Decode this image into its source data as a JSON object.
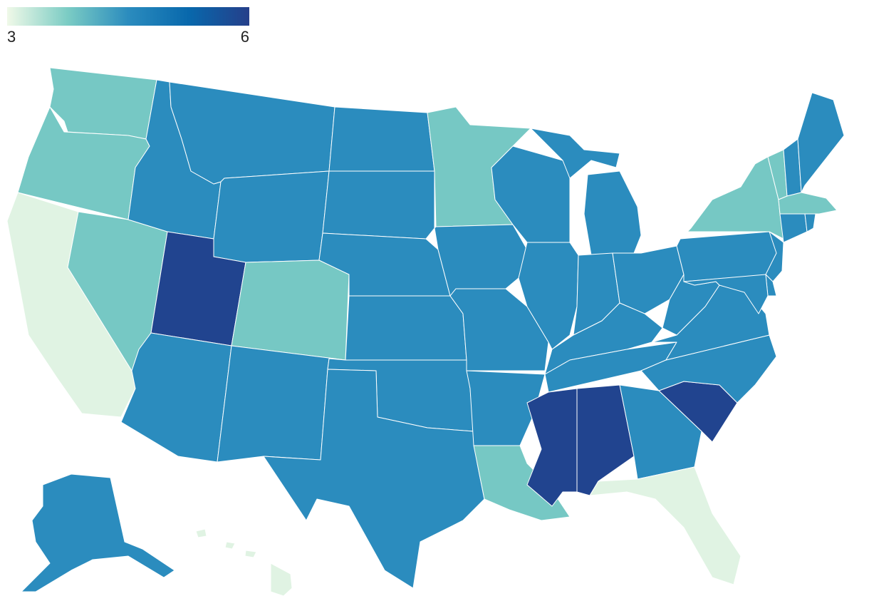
{
  "chart_data": {
    "type": "choropleth",
    "colorbar": {
      "lim": [
        3,
        6
      ],
      "ticks": [
        3,
        6
      ],
      "colors": [
        "#f0f9e8",
        "#7bccc4",
        "#2b8cbe",
        "#0868ac",
        "#253f8a"
      ]
    },
    "values": [
      3.8,
      3.8,
      3.1,
      3.8,
      4.5,
      4.5,
      4.5,
      5.9,
      4.5,
      3.8,
      4.5,
      4.5,
      4.5,
      4.5,
      4.5,
      4.5,
      4.5,
      3.8,
      4.5,
      4.5,
      4.5,
      3.8,
      4.5,
      4.5,
      4.5,
      4.5,
      4.5,
      4.5,
      4.5,
      5.9,
      5.9,
      4.5,
      3.1,
      5.9,
      4.5,
      4.5,
      4.5,
      4.5,
      3.8,
      3.8,
      4.5,
      4.5,
      3.8,
      4.5,
      4.5,
      4.5,
      4.5,
      4.5,
      4.5,
      3.1
    ]
  }
}
